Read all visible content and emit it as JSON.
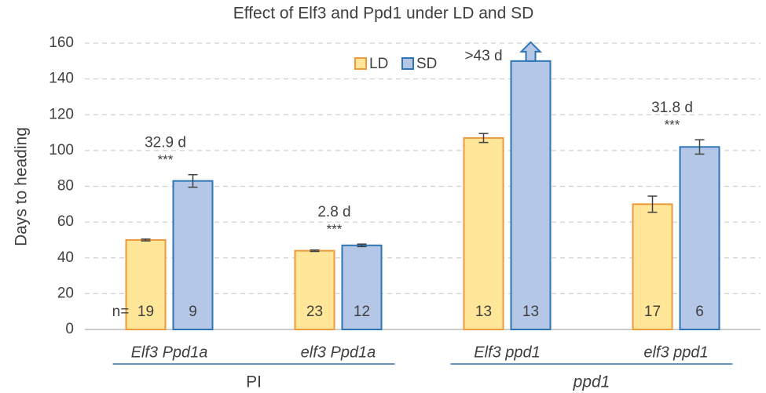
{
  "chart_data": {
    "type": "bar",
    "title": "Effect of Elf3 and Ppd1 under LD and SD",
    "y_label": "Days to heading",
    "categories": [
      "Elf3 Ppd1a",
      "elf3 Ppd1a",
      "Elf3 ppd1",
      "elf3 ppd1"
    ],
    "groups": [
      "PI",
      "ppd1"
    ],
    "series": [
      {
        "name": "LD",
        "color": "#ffe699",
        "edge": "#ed9a3a",
        "values": [
          50,
          44,
          107,
          70
        ],
        "errors": [
          0.5,
          0.4,
          2.5,
          4.5
        ],
        "n": [
          19,
          23,
          13,
          17
        ]
      },
      {
        "name": "SD",
        "color": "#b4c7e7",
        "edge": "#2e75b6",
        "values": [
          83,
          47,
          150,
          102
        ],
        "errors": [
          3.5,
          0.7,
          null,
          4
        ],
        "n": [
          9,
          12,
          13,
          6
        ]
      }
    ],
    "n_label": "n=",
    "annotations": [
      {
        "label": "32.9 d",
        "stars": "***"
      },
      {
        "label": "2.8 d",
        "stars": "***"
      },
      {
        "label": ">43 d",
        "arrow": true
      },
      {
        "label": "31.8 d",
        "stars": "***"
      }
    ],
    "ylim": [
      0,
      160
    ],
    "yticks": [
      0,
      20,
      40,
      60,
      80,
      100,
      120,
      140,
      160
    ],
    "grid": true
  }
}
